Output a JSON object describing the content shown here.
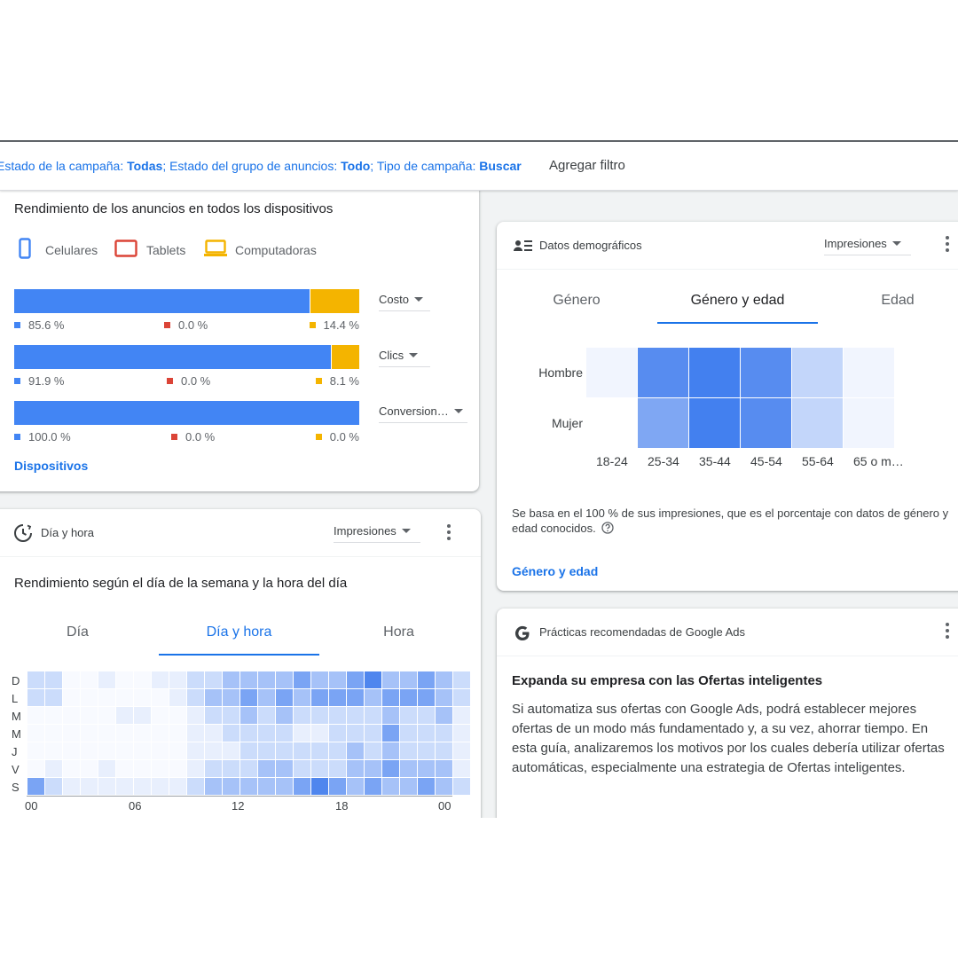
{
  "filterbar": {
    "campaign_state_label": "Estado de la campaña: ",
    "campaign_state_value": "Todas",
    "adgroup_state_label": "; Estado del grupo de anuncios: ",
    "adgroup_state_value": "Todo",
    "campaign_type_label": "; Tipo de campaña: ",
    "campaign_type_value": "Buscar",
    "add_filter": "Agregar filtro"
  },
  "devices": {
    "title": "Rendimiento de los anuncios en todos los dispositivos",
    "legend": [
      {
        "label": "Celulares",
        "icon": "phone-icon",
        "color": "#4285f4"
      },
      {
        "label": "Tablets",
        "icon": "tablet-icon",
        "color": "#db4437"
      },
      {
        "label": "Computadoras",
        "icon": "laptop-icon",
        "color": "#f4b400"
      }
    ],
    "rows": [
      {
        "metric": "Costo",
        "mobile": 85.6,
        "tablet": 0.0,
        "desktop": 14.4,
        "mobile_label": "85.6 %",
        "tablet_label": "0.0 %",
        "desktop_label": "14.4 %"
      },
      {
        "metric": "Clics",
        "mobile": 91.9,
        "tablet": 0.0,
        "desktop": 8.1,
        "mobile_label": "91.9 %",
        "tablet_label": "0.0 %",
        "desktop_label": "8.1 %"
      },
      {
        "metric": "Conversion…",
        "mobile": 100.0,
        "tablet": 0.0,
        "desktop": 0.0,
        "mobile_label": "100.0 %",
        "tablet_label": "0.0 %",
        "desktop_label": "0.0 %"
      }
    ],
    "link": "Dispositivos"
  },
  "dayhour": {
    "header": "Día y hora",
    "icon": "clock-icon",
    "metric": "Impresiones",
    "title": "Rendimiento según el día de la semana y la hora del día",
    "tabs": [
      "Día",
      "Día y hora",
      "Hora"
    ],
    "active_tab": 1,
    "days": [
      "D",
      "L",
      "M",
      "M",
      "J",
      "V",
      "S"
    ],
    "hour_labels": [
      "00",
      "06",
      "12",
      "18",
      "00"
    ],
    "heat": [
      [
        2,
        2,
        0,
        0,
        1,
        0,
        0,
        1,
        1,
        2,
        2,
        3,
        3,
        3,
        3,
        4,
        3,
        3,
        4,
        5,
        3,
        3,
        4,
        3,
        2
      ],
      [
        2,
        2,
        0,
        0,
        0,
        0,
        0,
        0,
        1,
        2,
        3,
        3,
        4,
        3,
        4,
        3,
        4,
        4,
        4,
        3,
        4,
        4,
        4,
        3,
        2
      ],
      [
        0,
        0,
        0,
        0,
        0,
        1,
        1,
        0,
        0,
        1,
        2,
        2,
        3,
        2,
        3,
        2,
        2,
        2,
        2,
        2,
        3,
        2,
        2,
        3,
        1
      ],
      [
        0,
        0,
        0,
        0,
        0,
        0,
        0,
        0,
        0,
        1,
        1,
        2,
        2,
        2,
        2,
        1,
        1,
        2,
        2,
        2,
        4,
        2,
        2,
        2,
        1
      ],
      [
        0,
        0,
        0,
        0,
        0,
        0,
        0,
        0,
        0,
        1,
        1,
        1,
        2,
        2,
        2,
        2,
        2,
        2,
        3,
        2,
        3,
        2,
        2,
        2,
        1
      ],
      [
        0,
        1,
        0,
        0,
        1,
        0,
        0,
        0,
        0,
        1,
        2,
        2,
        2,
        3,
        3,
        2,
        2,
        2,
        3,
        3,
        4,
        3,
        3,
        3,
        1
      ],
      [
        4,
        2,
        1,
        1,
        1,
        1,
        1,
        1,
        1,
        2,
        3,
        3,
        3,
        3,
        3,
        4,
        5,
        4,
        3,
        4,
        3,
        3,
        4,
        3,
        2
      ]
    ]
  },
  "demographics": {
    "header": "Datos demográficos",
    "icon": "people-list-icon",
    "metric": "Impresiones",
    "tabs": [
      "Género",
      "Género y edad",
      "Edad"
    ],
    "active_tab": 1,
    "rows": [
      "Hombre",
      "Mujer"
    ],
    "ages": [
      "18-24",
      "25-34",
      "35-44",
      "45-54",
      "55-64",
      "65 o m…"
    ],
    "heat": [
      [
        1,
        4,
        5,
        4,
        2,
        1
      ],
      [
        0,
        3,
        5,
        4,
        2,
        1
      ]
    ],
    "note": "Se basa en el 100 % de sus impresiones, que es el porcentaje con datos de género y edad conocidos.",
    "link": "Género y edad"
  },
  "practices": {
    "header": "Prácticas recomendadas de Google Ads",
    "icon": "google-icon",
    "title": "Expanda su empresa con las Ofertas inteligentes",
    "body": "Si automatiza sus ofertas con Google Ads, podrá establecer mejores ofertas de un modo más fundamentado y, a su vez, ahorrar tiempo. En esta guía, analizaremos los motivos por los cuales debería utilizar ofertas automáticas, especialmente una estrategia de Ofertas inteligentes."
  },
  "colors": {
    "blue": "#4285f4",
    "red": "#db4437",
    "yellow": "#f4b400",
    "link": "#1a73e8"
  }
}
